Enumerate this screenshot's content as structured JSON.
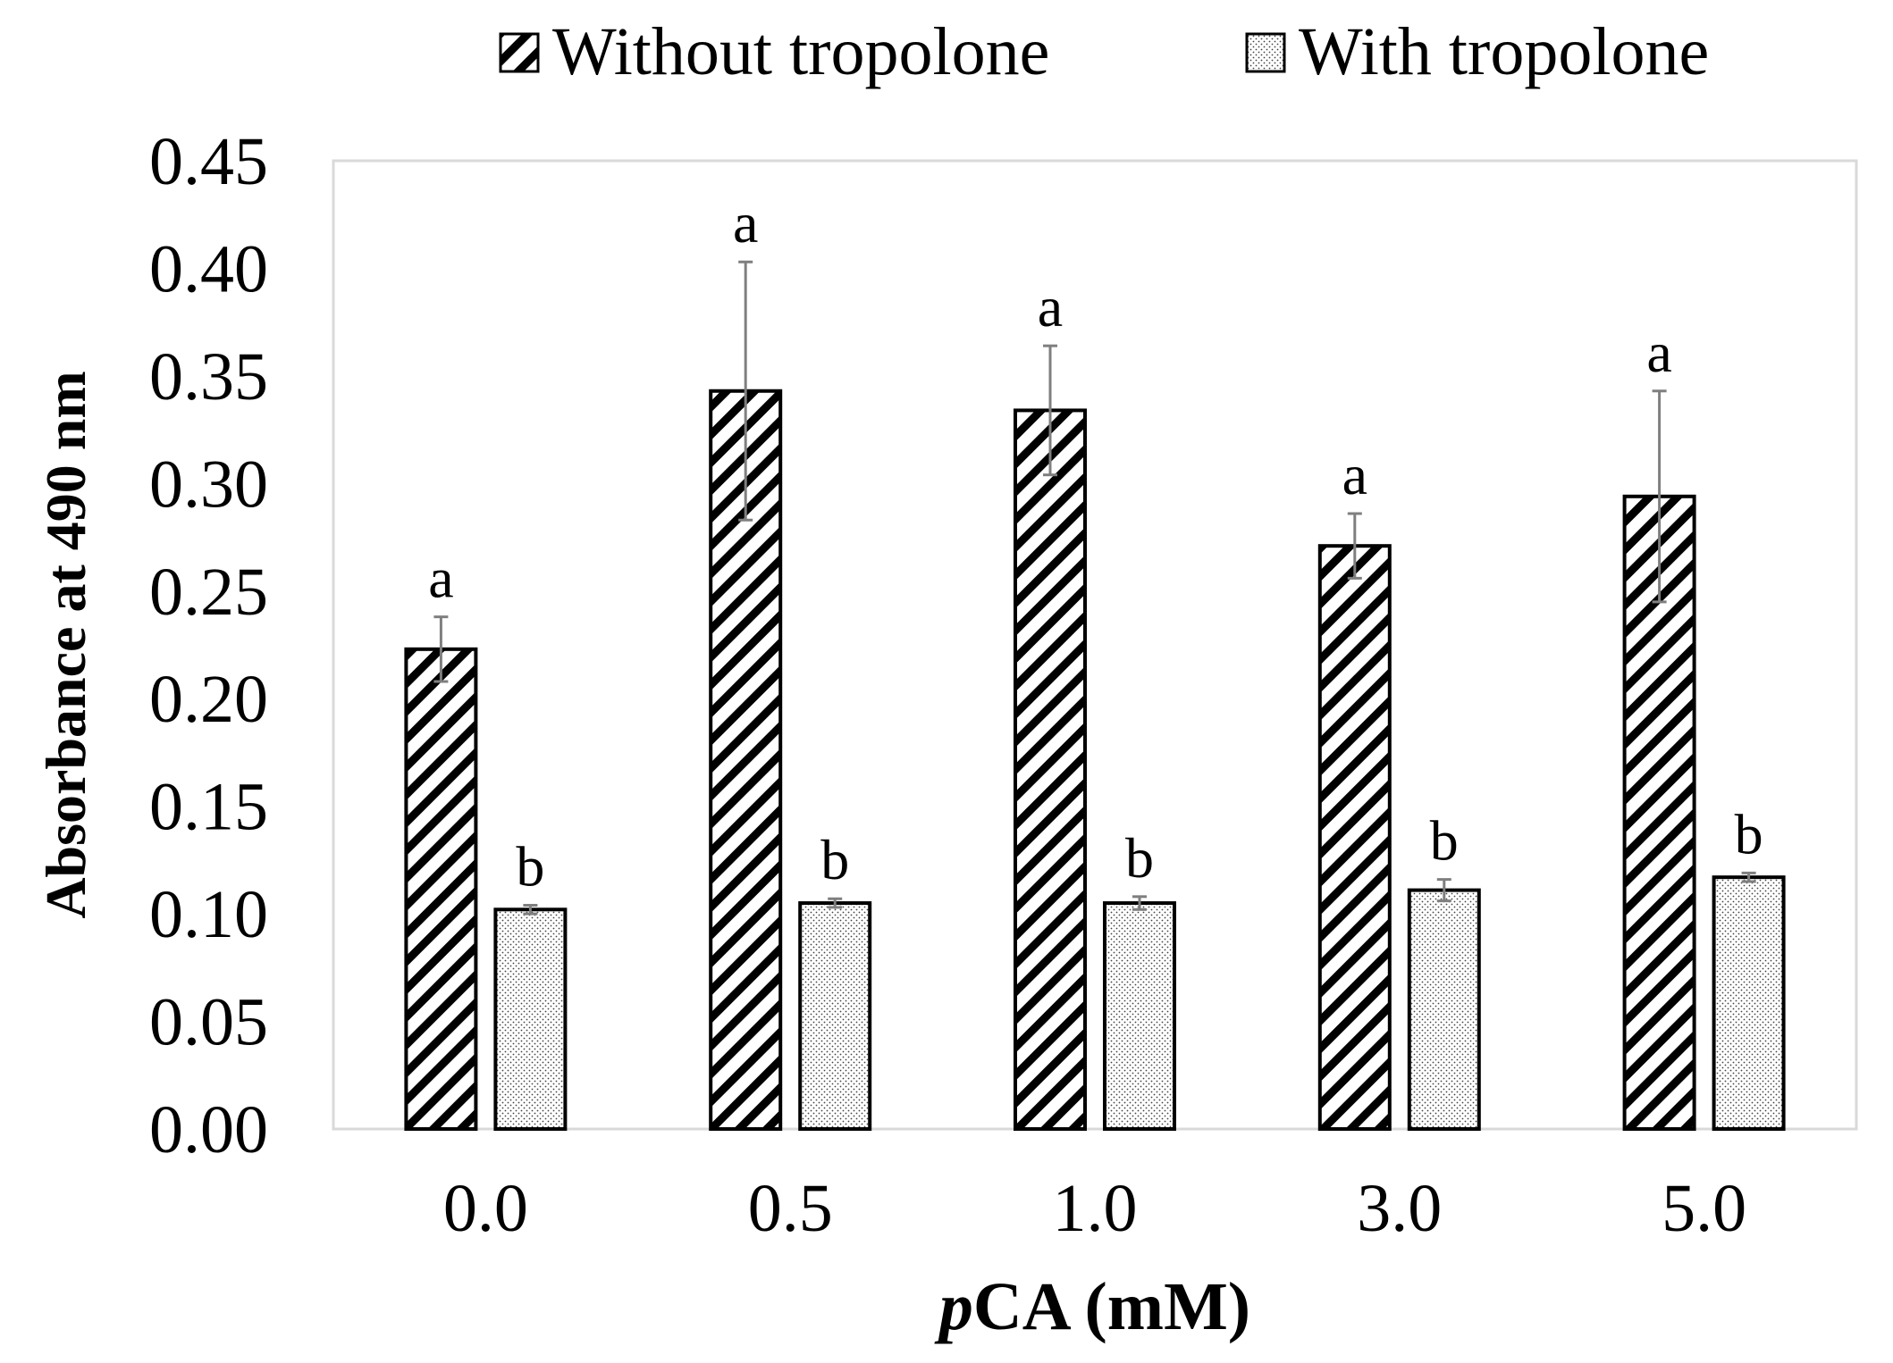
{
  "chart_data": {
    "type": "bar",
    "title": "",
    "xlabel_italic": "p",
    "xlabel_rest": "CA (mM)",
    "ylabel": "Absorbance at 490 nm",
    "ylim": [
      0,
      0.45
    ],
    "yticks": [
      "0.00",
      "0.05",
      "0.10",
      "0.15",
      "0.20",
      "0.25",
      "0.30",
      "0.35",
      "0.40",
      "0.45"
    ],
    "categories": [
      "0.0",
      "0.5",
      "1.0",
      "3.0",
      "5.0"
    ],
    "legend_position": "top",
    "series": [
      {
        "name": "Without tropolone",
        "pattern": "diagonal-hatch",
        "values": [
          0.223,
          0.343,
          0.334,
          0.271,
          0.294
        ],
        "errors": [
          0.015,
          0.06,
          0.03,
          0.015,
          0.049
        ],
        "letters": [
          "a",
          "a",
          "a",
          "a",
          "a"
        ]
      },
      {
        "name": "With tropolone",
        "pattern": "dotted",
        "values": [
          0.102,
          0.105,
          0.105,
          0.111,
          0.117
        ],
        "errors": [
          0.002,
          0.002,
          0.003,
          0.005,
          0.002
        ],
        "letters": [
          "b",
          "b",
          "b",
          "b",
          "b"
        ]
      }
    ],
    "colors": {
      "bar_edge": "#000000",
      "plot_border": "#d9d9d9",
      "error_bar": "#7f7f7f"
    }
  }
}
